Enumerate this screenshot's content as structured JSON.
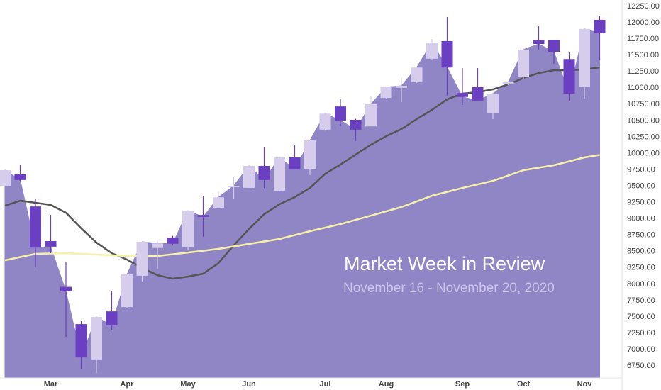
{
  "chart_data": {
    "type": "candlestick",
    "title": "Market Week in Review",
    "subtitle": "November 16 - November 20, 2020",
    "categories": [
      null,
      null,
      null,
      "Mar",
      null,
      null,
      null,
      null,
      "Apr",
      null,
      null,
      null,
      "May",
      null,
      null,
      null,
      "Jun",
      null,
      null,
      null,
      null,
      "Jul",
      null,
      null,
      null,
      "Aug",
      null,
      null,
      null,
      null,
      "Sep",
      null,
      null,
      null,
      "Oct",
      null,
      null,
      null,
      "Nov",
      null
    ],
    "open": [
      9506,
      9680,
      9190,
      8660,
      7960,
      7390,
      6850,
      7585,
      7650,
      8130,
      8555,
      8715,
      8565,
      9060,
      9170,
      9485,
      9475,
      9810,
      9430,
      9940,
      9765,
      10365,
      10720,
      10515,
      10415,
      10850,
      11005,
      11090,
      11450,
      11720,
      10925,
      11015,
      10615,
      11070,
      11175,
      11730,
      11740,
      11445,
      11015,
      12045
    ],
    "high": [
      9760,
      9831,
      9311,
      9061,
      8334,
      7434,
      7500,
      7901,
      8150,
      8649,
      8660,
      8740,
      9126,
      9354,
      9419,
      9636,
      9810,
      10092,
      9940,
      10135,
      10200,
      10620,
      10829,
      10530,
      10873,
      11014,
      11155,
      11317,
      11751,
      12087,
      11306,
      11306,
      10938,
      11110,
      11610,
      11957,
      11740,
      11545,
      11903,
      12109
    ],
    "low": [
      9500,
      9580,
      8259,
      8476,
      7196,
      6708,
      6643,
      7304,
      7640,
      8042,
      8237,
      8600,
      8530,
      8725,
      9160,
      9311,
      9473,
      9473,
      9420,
      9755,
      9669,
      10350,
      10417,
      10189,
      10417,
      10840,
      10786,
      11080,
      11426,
      10883,
      10742,
      10807,
      10526,
      11045,
      11133,
      11588,
      11371,
      10807,
      10840,
      11426
    ],
    "close": [
      9745,
      9595,
      8560,
      8575,
      7890,
      6880,
      7500,
      7370,
      8150,
      8650,
      8625,
      8620,
      9125,
      9030,
      9330,
      9505,
      9810,
      9595,
      9940,
      9755,
      10200,
      10610,
      10505,
      10365,
      10755,
      11015,
      11035,
      11315,
      11695,
      11315,
      10865,
      10810,
      10915,
      11090,
      11590,
      11675,
      11555,
      10915,
      11905,
      11840
    ],
    "up_color": "#d6cdec",
    "down_color": "#6a3fc2",
    "area_color": "#9086c6",
    "ma": [
      {
        "color": "#555555",
        "values": [
          9202,
          9278,
          9246,
          9213,
          9094,
          8855,
          8638,
          8476,
          8378,
          8248,
          8139,
          8085,
          8117,
          8161,
          8323,
          8595,
          8844,
          9072,
          9224,
          9332,
          9473,
          9690,
          9831,
          9983,
          10135,
          10265,
          10374,
          10526,
          10667,
          10829,
          10916,
          10938,
          10981,
          11057,
          11155,
          11230,
          11274,
          11274,
          11285,
          11317
        ]
      },
      {
        "color": "#f7f0a8",
        "values": [
          8367,
          8416,
          8465,
          8470,
          8476,
          8465,
          8454,
          8443,
          8432,
          8432,
          8432,
          8459,
          8486,
          8513,
          8541,
          8579,
          8617,
          8655,
          8693,
          8752,
          8812,
          8866,
          8920,
          8985,
          9050,
          9115,
          9181,
          9267,
          9354,
          9413,
          9473,
          9527,
          9582,
          9663,
          9745,
          9783,
          9821,
          9880,
          9940,
          9978
        ]
      }
    ],
    "ylim": [
      6567,
      12348
    ],
    "yticks": [
      {
        "value": 6750,
        "label": "6750.00"
      },
      {
        "value": 7000,
        "label": "7000.00"
      },
      {
        "value": 7250,
        "label": "7250.00"
      },
      {
        "value": 7500,
        "label": "7500.00"
      },
      {
        "value": 7750,
        "label": "7750.00"
      },
      {
        "value": 8000,
        "label": "8000.00"
      },
      {
        "value": 8250,
        "label": "8250.00"
      },
      {
        "value": 8500,
        "label": "8500.00"
      },
      {
        "value": 8750,
        "label": "8750.00"
      },
      {
        "value": 9000,
        "label": "9000.00"
      },
      {
        "value": 9250,
        "label": "9250.00"
      },
      {
        "value": 9500,
        "label": "9500.00"
      },
      {
        "value": 9750,
        "label": "9750.00"
      },
      {
        "value": 10000,
        "label": "10000.00"
      },
      {
        "value": 10250,
        "label": "10250.00"
      },
      {
        "value": 10500,
        "label": "10500.00"
      },
      {
        "value": 10750,
        "label": "10750.00"
      },
      {
        "value": 11000,
        "label": "11000.00"
      },
      {
        "value": 11250,
        "label": "11250.00"
      },
      {
        "value": 11500,
        "label": "11500.00"
      },
      {
        "value": 11750,
        "label": "11750.00"
      },
      {
        "value": 12000,
        "label": "12000.00"
      },
      {
        "value": 12250,
        "label": "12250.00"
      }
    ]
  }
}
